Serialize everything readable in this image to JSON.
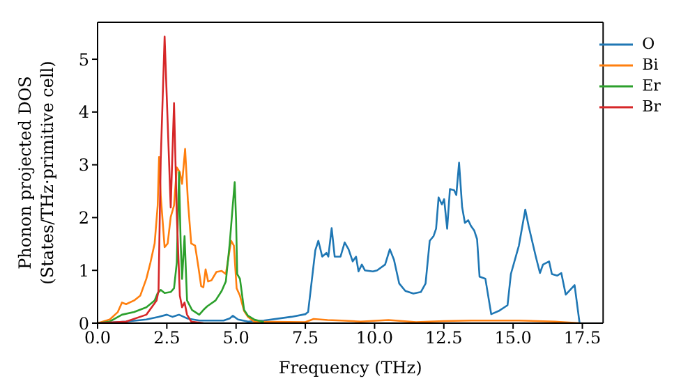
{
  "chart_data": {
    "type": "line",
    "xlabel": "Frequency (THz)",
    "ylabel": "Phonon projected DOS\n(States/THz·primitive cell)",
    "xlim": [
      0,
      18.25
    ],
    "ylim": [
      0,
      5.7
    ],
    "xticks": [
      {
        "value": 0,
        "label": "0.0"
      },
      2.5,
      {
        "value": 5,
        "label": "5.0"
      },
      7.5,
      {
        "value": 10,
        "label": "10.0"
      },
      12.5,
      {
        "value": 15,
        "label": "15.0"
      },
      17.5
    ],
    "yticks": [
      0,
      1,
      2,
      3,
      4,
      5
    ],
    "grid": false,
    "legend": "top right",
    "marker": "none",
    "line_style": "solid",
    "series": [
      {
        "name": "O",
        "color": "#1f77b4",
        "x": [
          0,
          1.03,
          1.76,
          2.2,
          2.5,
          2.7,
          2.94,
          3.23,
          3.67,
          4.55,
          4.77,
          4.88,
          5.07,
          5.43,
          6.0,
          7.0,
          7.5,
          7.6,
          7.86,
          7.97,
          8.11,
          8.26,
          8.33,
          8.45,
          8.56,
          8.77,
          8.92,
          9.06,
          9.21,
          9.33,
          9.42,
          9.54,
          9.65,
          9.94,
          10.09,
          10.38,
          10.55,
          10.7,
          10.89,
          11.11,
          11.4,
          11.67,
          11.84,
          11.99,
          12.13,
          12.22,
          12.31,
          12.43,
          12.51,
          12.62,
          12.72,
          12.87,
          12.95,
          13.05,
          13.16,
          13.26,
          13.38,
          13.48,
          13.6,
          13.7,
          13.79,
          14.0,
          14.21,
          14.48,
          14.8,
          14.92,
          15.21,
          15.44,
          15.56,
          15.82,
          15.97,
          16.08,
          16.3,
          16.4,
          16.59,
          16.74,
          16.9,
          17.22,
          17.4
        ],
        "values": [
          0,
          0.03,
          0.07,
          0.12,
          0.16,
          0.12,
          0.16,
          0.09,
          0.05,
          0.05,
          0.09,
          0.14,
          0.07,
          0.03,
          0.05,
          0.12,
          0.17,
          0.21,
          1.38,
          1.56,
          1.26,
          1.33,
          1.26,
          1.8,
          1.26,
          1.26,
          1.53,
          1.4,
          1.17,
          1.26,
          0.98,
          1.11,
          1.0,
          0.98,
          1.0,
          1.11,
          1.4,
          1.2,
          0.75,
          0.61,
          0.56,
          0.59,
          0.75,
          1.56,
          1.65,
          1.79,
          2.38,
          2.25,
          2.35,
          1.79,
          2.54,
          2.52,
          2.43,
          3.04,
          2.2,
          1.9,
          1.95,
          1.84,
          1.75,
          1.59,
          0.88,
          0.84,
          0.17,
          0.23,
          0.34,
          0.93,
          1.47,
          2.15,
          1.84,
          1.26,
          0.95,
          1.11,
          1.17,
          0.93,
          0.9,
          0.95,
          0.54,
          0.72,
          0
        ]
      },
      {
        "name": "Bi",
        "color": "#ff7f0e",
        "x": [
          0,
          0.44,
          0.73,
          0.88,
          1.03,
          1.32,
          1.54,
          1.76,
          1.91,
          2.06,
          2.17,
          2.22,
          2.28,
          2.42,
          2.53,
          2.64,
          2.76,
          2.86,
          2.97,
          3.05,
          3.16,
          3.26,
          3.38,
          3.52,
          3.64,
          3.74,
          3.82,
          3.9,
          3.99,
          4.11,
          4.29,
          4.48,
          4.63,
          4.82,
          4.92,
          5.02,
          5.14,
          5.29,
          5.43,
          5.65,
          7.5,
          7.8,
          8.3,
          8.8,
          9.5,
          10.5,
          11.5,
          12.5,
          13.5,
          15.2,
          16.5,
          17.4
        ],
        "values": [
          0,
          0.07,
          0.21,
          0.39,
          0.36,
          0.43,
          0.52,
          0.84,
          1.15,
          1.51,
          2.23,
          3.15,
          2.41,
          1.44,
          1.51,
          2.01,
          2.23,
          2.95,
          2.86,
          2.64,
          3.3,
          2.32,
          1.51,
          1.47,
          1.06,
          0.7,
          0.68,
          1.02,
          0.79,
          0.81,
          0.97,
          0.99,
          0.93,
          1.56,
          1.47,
          0.66,
          0.52,
          0.23,
          0.12,
          0.03,
          0.02,
          0.08,
          0.06,
          0.05,
          0.03,
          0.06,
          0.02,
          0.04,
          0.05,
          0.05,
          0.03,
          0
        ]
      },
      {
        "name": "Er",
        "color": "#2ca02c",
        "x": [
          0,
          0.44,
          0.88,
          1.32,
          1.76,
          2.06,
          2.17,
          2.28,
          2.42,
          2.64,
          2.76,
          2.86,
          2.94,
          3.0,
          3.05,
          3.14,
          3.23,
          3.41,
          3.67,
          3.82,
          3.96,
          4.26,
          4.48,
          4.63,
          4.77,
          4.88,
          4.95,
          5.0,
          5.04,
          5.14,
          5.29,
          5.43,
          5.65,
          6.0
        ],
        "values": [
          0,
          0.03,
          0.16,
          0.21,
          0.3,
          0.43,
          0.57,
          0.63,
          0.57,
          0.59,
          0.66,
          1.15,
          2.86,
          1.51,
          0.84,
          1.65,
          0.43,
          0.25,
          0.16,
          0.25,
          0.32,
          0.43,
          0.61,
          0.79,
          1.51,
          2.23,
          2.67,
          1.96,
          0.93,
          0.84,
          0.25,
          0.14,
          0.07,
          0.02
        ]
      },
      {
        "name": "Br",
        "color": "#d62728",
        "x": [
          0,
          1.03,
          1.76,
          2.13,
          2.2,
          2.28,
          2.42,
          2.64,
          2.76,
          2.86,
          2.97,
          3.05,
          3.14,
          3.23,
          3.38,
          3.82
        ],
        "values": [
          0,
          0.03,
          0.16,
          0.43,
          0.61,
          3.1,
          5.43,
          2.19,
          4.17,
          2.05,
          0.52,
          0.3,
          0.39,
          0.16,
          0.03,
          0
        ]
      }
    ]
  }
}
